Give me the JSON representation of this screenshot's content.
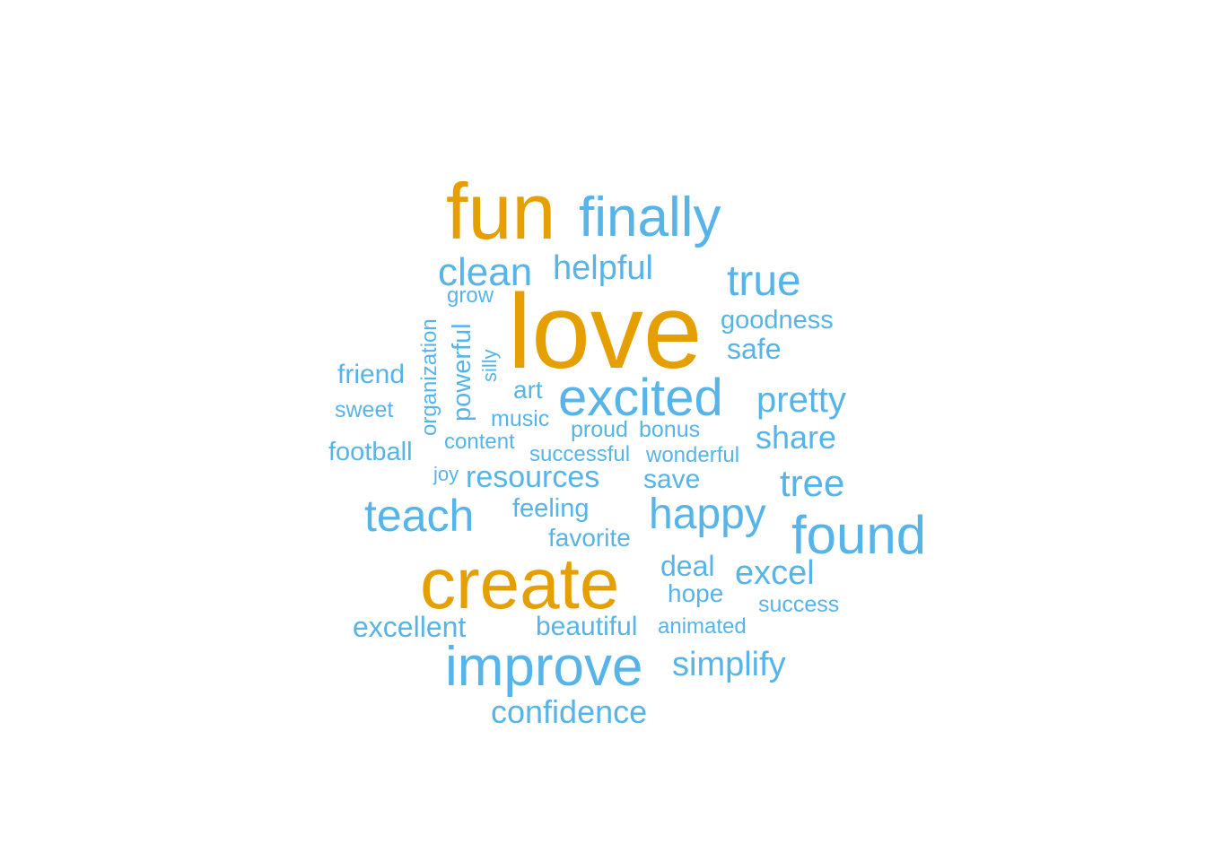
{
  "chart_data": {
    "type": "wordcloud",
    "colors": {
      "top": "#E69F00",
      "other": "#56B4E9"
    },
    "words": [
      {
        "text": "love",
        "group": "top"
      },
      {
        "text": "fun",
        "group": "top"
      },
      {
        "text": "create",
        "group": "top"
      },
      {
        "text": "finally",
        "group": "other"
      },
      {
        "text": "improve",
        "group": "other"
      },
      {
        "text": "found",
        "group": "other"
      },
      {
        "text": "excited",
        "group": "other"
      },
      {
        "text": "teach",
        "group": "other"
      },
      {
        "text": "happy",
        "group": "other"
      },
      {
        "text": "clean",
        "group": "other"
      },
      {
        "text": "true",
        "group": "other"
      },
      {
        "text": "helpful",
        "group": "other"
      },
      {
        "text": "pretty",
        "group": "other"
      },
      {
        "text": "tree",
        "group": "other"
      },
      {
        "text": "excel",
        "group": "other"
      },
      {
        "text": "simplify",
        "group": "other"
      },
      {
        "text": "confidence",
        "group": "other"
      },
      {
        "text": "share",
        "group": "other"
      },
      {
        "text": "resources",
        "group": "other"
      },
      {
        "text": "excellent",
        "group": "other"
      },
      {
        "text": "goodness",
        "group": "other"
      },
      {
        "text": "safe",
        "group": "other"
      },
      {
        "text": "friend",
        "group": "other"
      },
      {
        "text": "football",
        "group": "other"
      },
      {
        "text": "save",
        "group": "other"
      },
      {
        "text": "feeling",
        "group": "other"
      },
      {
        "text": "favorite",
        "group": "other"
      },
      {
        "text": "deal",
        "group": "other"
      },
      {
        "text": "hope",
        "group": "other"
      },
      {
        "text": "beautiful",
        "group": "other"
      },
      {
        "text": "powerful",
        "group": "other"
      },
      {
        "text": "art",
        "group": "other"
      },
      {
        "text": "music",
        "group": "other"
      },
      {
        "text": "proud",
        "group": "other"
      },
      {
        "text": "bonus",
        "group": "other"
      },
      {
        "text": "content",
        "group": "other"
      },
      {
        "text": "successful",
        "group": "other"
      },
      {
        "text": "wonderful",
        "group": "other"
      },
      {
        "text": "sweet",
        "group": "other"
      },
      {
        "text": "organization",
        "group": "other"
      },
      {
        "text": "grow",
        "group": "other"
      },
      {
        "text": "silly",
        "group": "other"
      },
      {
        "text": "joy",
        "group": "other"
      },
      {
        "text": "success",
        "group": "other"
      },
      {
        "text": "animated",
        "group": "other"
      }
    ]
  }
}
